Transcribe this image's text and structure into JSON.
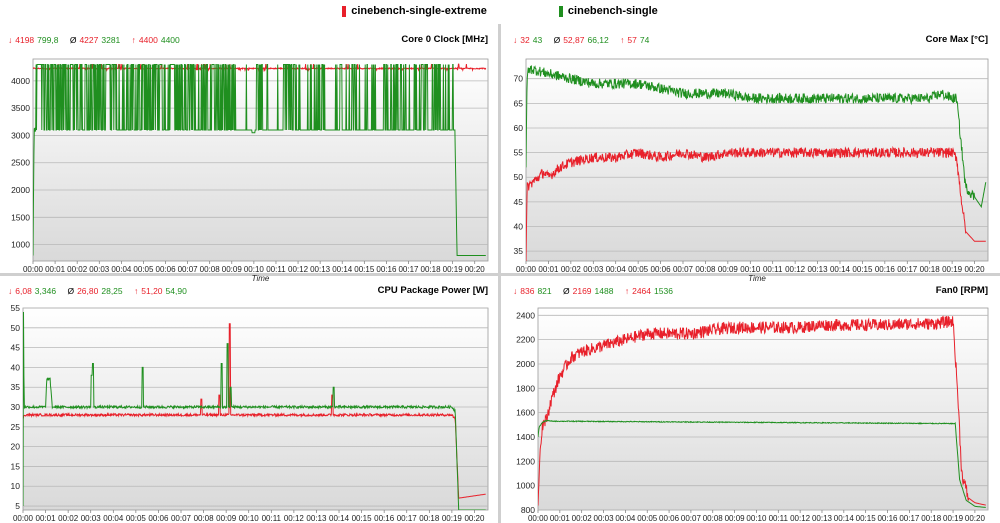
{
  "legend": [
    {
      "name": "cinebench-single-extreme",
      "color": "#e8202a"
    },
    {
      "name": "cinebench-single",
      "color": "#1f8f1f"
    }
  ],
  "colors": {
    "red": "#e8202a",
    "green": "#1f8f1f",
    "grid": "#b8b8b8"
  },
  "xaxis_label": "Time",
  "x_ticks": [
    "00:00",
    "00:01",
    "00:02",
    "00:03",
    "00:04",
    "00:05",
    "00:06",
    "00:07",
    "00:08",
    "00:09",
    "00:10",
    "00:11",
    "00:12",
    "00:13",
    "00:14",
    "00:15",
    "00:16",
    "00:17",
    "00:18",
    "00:19",
    "00:20"
  ],
  "chart_data": [
    {
      "type": "line",
      "title": "Core 0 Clock [MHz]",
      "stats": {
        "min_red": "4198",
        "min_green": "799,8",
        "avg_red": "4227",
        "avg_green": "3281",
        "max_red": "4400",
        "max_green": "4400"
      },
      "xlabel": "Time",
      "xlim": [
        0,
        20.6
      ],
      "ylim": [
        700,
        4400
      ],
      "yticks": [
        1000,
        1500,
        2000,
        2500,
        3000,
        3500,
        4000
      ],
      "series": [
        {
          "name": "cinebench-single-extreme",
          "x": [
            0,
            20.5
          ],
          "values": [
            4227,
            4227
          ]
        },
        {
          "name": "cinebench-single",
          "x": [
            0,
            0.05,
            0.1,
            19.1,
            19.2,
            20.5
          ],
          "values": [
            800,
            3100,
            3100,
            3100,
            800,
            800
          ]
        }
      ]
    },
    {
      "type": "line",
      "title": "Core Max [°C]",
      "stats": {
        "min_red": "32",
        "min_green": "43",
        "avg_red": "52,87",
        "avg_green": "66,12",
        "max_red": "57",
        "max_green": "74"
      },
      "xlabel": "Time",
      "xlim": [
        0,
        20.6
      ],
      "ylim": [
        33,
        74
      ],
      "yticks": [
        35,
        40,
        45,
        50,
        55,
        60,
        65,
        70
      ],
      "series": [
        {
          "name": "cinebench-single-extreme",
          "x": [
            0,
            0.05,
            0.3,
            0.8,
            1,
            1.5,
            2,
            3,
            4,
            5,
            6,
            7,
            8,
            9,
            10,
            11,
            12,
            13,
            14,
            15,
            16,
            17,
            18,
            19,
            19.2,
            19.4,
            19.6,
            20,
            20.5
          ],
          "values": [
            33,
            48,
            49,
            51,
            50,
            52,
            53,
            54,
            54,
            55,
            54,
            55,
            54,
            55,
            55,
            55,
            55,
            55,
            55,
            55,
            55,
            55,
            55,
            55,
            54,
            46,
            39,
            37,
            37
          ]
        },
        {
          "name": "cinebench-single",
          "x": [
            0,
            0.05,
            0.2,
            1,
            2,
            3,
            4,
            5,
            6,
            7,
            8,
            9,
            10,
            11,
            12,
            13,
            14,
            15,
            16,
            17,
            18,
            18.5,
            19,
            19.2,
            19.4,
            19.6,
            20,
            20.3,
            20.5
          ],
          "values": [
            52,
            71,
            72,
            71,
            70,
            69,
            69,
            69,
            68,
            67,
            67,
            67,
            66,
            66,
            66,
            66,
            66,
            66,
            66,
            66,
            66,
            67,
            66,
            66,
            57,
            48,
            46,
            44,
            49
          ]
        }
      ]
    },
    {
      "type": "line",
      "title": "CPU Package Power [W]",
      "stats": {
        "min_red": "6,08",
        "min_green": "3,346",
        "avg_red": "26,80",
        "avg_green": "28,25",
        "max_red": "51,20",
        "max_green": "54,90"
      },
      "xlabel": "Time",
      "xlim": [
        0,
        20.6
      ],
      "ylim": [
        4,
        55
      ],
      "yticks": [
        5,
        10,
        15,
        20,
        25,
        30,
        35,
        40,
        45,
        50,
        55
      ],
      "series": [
        {
          "name": "cinebench-single-extreme",
          "x": [
            0,
            0.05,
            0.2,
            19,
            19.15,
            19.3,
            20.5
          ],
          "values": [
            27,
            28,
            28,
            28,
            27,
            7,
            8
          ]
        },
        {
          "name": "cinebench-single",
          "x": [
            0,
            0.02,
            0.05,
            0.2,
            1,
            1.05,
            1.2,
            1.3,
            19,
            19.15,
            19.3,
            20.5
          ],
          "values": [
            5,
            54,
            30,
            30,
            30,
            37,
            37,
            30,
            30,
            29,
            4,
            4
          ]
        }
      ]
    },
    {
      "type": "line",
      "title": "Fan0 [RPM]",
      "stats": {
        "min_red": "836",
        "min_green": "821",
        "avg_red": "2169",
        "avg_green": "1488",
        "max_red": "2464",
        "max_green": "1536"
      },
      "xlabel": "Time",
      "xlim": [
        0,
        20.6
      ],
      "ylim": [
        800,
        2460
      ],
      "yticks": [
        800,
        1000,
        1200,
        1400,
        1600,
        1800,
        2000,
        2200,
        2400
      ],
      "series": [
        {
          "name": "cinebench-single-extreme",
          "x": [
            0,
            0.1,
            0.2,
            0.4,
            0.6,
            1,
            1.5,
            2,
            3,
            4,
            5,
            6,
            7,
            8,
            9,
            10,
            11,
            12,
            13,
            14,
            15,
            16,
            17,
            18,
            19,
            19.2,
            19.4,
            19.7,
            20,
            20.5
          ],
          "values": [
            836,
            1300,
            1500,
            1550,
            1700,
            1900,
            2050,
            2100,
            2150,
            2200,
            2250,
            2250,
            2250,
            2280,
            2300,
            2300,
            2300,
            2300,
            2320,
            2320,
            2320,
            2320,
            2330,
            2330,
            2350,
            1800,
            1100,
            900,
            860,
            840
          ]
        },
        {
          "name": "cinebench-single",
          "x": [
            0,
            0.05,
            0.2,
            0.4,
            0.6,
            19.1,
            19.3,
            19.6,
            20,
            20.5
          ],
          "values": [
            1400,
            1480,
            1520,
            1536,
            1530,
            1510,
            1050,
            880,
            830,
            821
          ]
        }
      ]
    }
  ]
}
